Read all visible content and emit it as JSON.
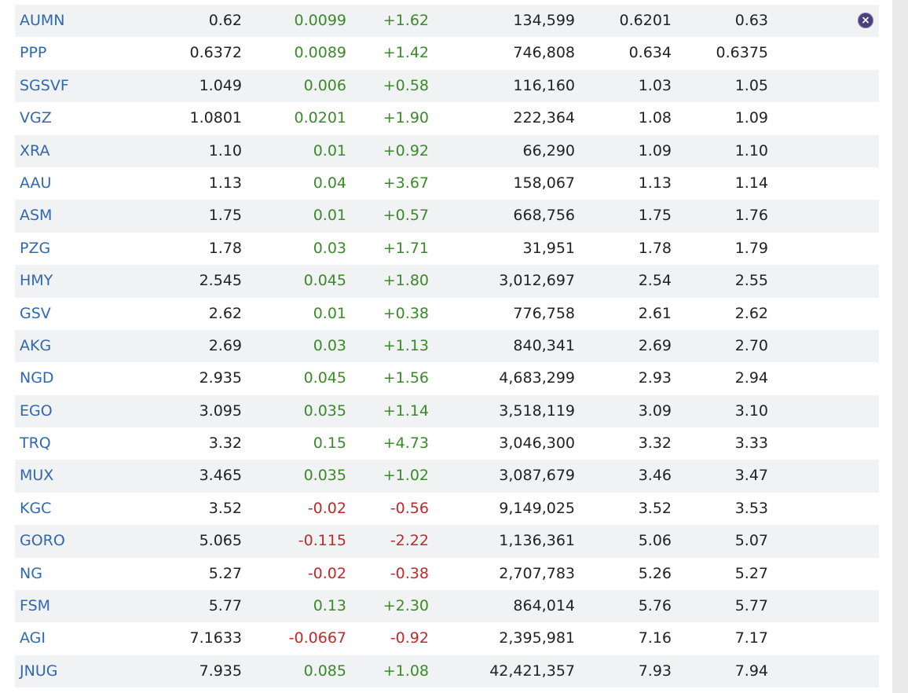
{
  "colors": {
    "symbol": "#2f68b0",
    "positive": "#3a8a2a",
    "negative": "#c0282d",
    "stripe": "#f1f2f3"
  },
  "close_icon": "close-icon",
  "rows": [
    {
      "symbol": "AUMN",
      "last": "0.62",
      "change": "0.0099",
      "pct": "+1.62",
      "volume": "134,599",
      "bid": "0.6201",
      "ask": "0.63",
      "dir": "pos"
    },
    {
      "symbol": "PPP",
      "last": "0.6372",
      "change": "0.0089",
      "pct": "+1.42",
      "volume": "746,808",
      "bid": "0.634",
      "ask": "0.6375",
      "dir": "pos"
    },
    {
      "symbol": "SGSVF",
      "last": "1.049",
      "change": "0.006",
      "pct": "+0.58",
      "volume": "116,160",
      "bid": "1.03",
      "ask": "1.05",
      "dir": "pos"
    },
    {
      "symbol": "VGZ",
      "last": "1.0801",
      "change": "0.0201",
      "pct": "+1.90",
      "volume": "222,364",
      "bid": "1.08",
      "ask": "1.09",
      "dir": "pos"
    },
    {
      "symbol": "XRA",
      "last": "1.10",
      "change": "0.01",
      "pct": "+0.92",
      "volume": "66,290",
      "bid": "1.09",
      "ask": "1.10",
      "dir": "pos"
    },
    {
      "symbol": "AAU",
      "last": "1.13",
      "change": "0.04",
      "pct": "+3.67",
      "volume": "158,067",
      "bid": "1.13",
      "ask": "1.14",
      "dir": "pos"
    },
    {
      "symbol": "ASM",
      "last": "1.75",
      "change": "0.01",
      "pct": "+0.57",
      "volume": "668,756",
      "bid": "1.75",
      "ask": "1.76",
      "dir": "pos"
    },
    {
      "symbol": "PZG",
      "last": "1.78",
      "change": "0.03",
      "pct": "+1.71",
      "volume": "31,951",
      "bid": "1.78",
      "ask": "1.79",
      "dir": "pos"
    },
    {
      "symbol": "HMY",
      "last": "2.545",
      "change": "0.045",
      "pct": "+1.80",
      "volume": "3,012,697",
      "bid": "2.54",
      "ask": "2.55",
      "dir": "pos"
    },
    {
      "symbol": "GSV",
      "last": "2.62",
      "change": "0.01",
      "pct": "+0.38",
      "volume": "776,758",
      "bid": "2.61",
      "ask": "2.62",
      "dir": "pos"
    },
    {
      "symbol": "AKG",
      "last": "2.69",
      "change": "0.03",
      "pct": "+1.13",
      "volume": "840,341",
      "bid": "2.69",
      "ask": "2.70",
      "dir": "pos"
    },
    {
      "symbol": "NGD",
      "last": "2.935",
      "change": "0.045",
      "pct": "+1.56",
      "volume": "4,683,299",
      "bid": "2.93",
      "ask": "2.94",
      "dir": "pos"
    },
    {
      "symbol": "EGO",
      "last": "3.095",
      "change": "0.035",
      "pct": "+1.14",
      "volume": "3,518,119",
      "bid": "3.09",
      "ask": "3.10",
      "dir": "pos"
    },
    {
      "symbol": "TRQ",
      "last": "3.32",
      "change": "0.15",
      "pct": "+4.73",
      "volume": "3,046,300",
      "bid": "3.32",
      "ask": "3.33",
      "dir": "pos"
    },
    {
      "symbol": "MUX",
      "last": "3.465",
      "change": "0.035",
      "pct": "+1.02",
      "volume": "3,087,679",
      "bid": "3.46",
      "ask": "3.47",
      "dir": "pos"
    },
    {
      "symbol": "KGC",
      "last": "3.52",
      "change": "-0.02",
      "pct": "-0.56",
      "volume": "9,149,025",
      "bid": "3.52",
      "ask": "3.53",
      "dir": "neg"
    },
    {
      "symbol": "GORO",
      "last": "5.065",
      "change": "-0.115",
      "pct": "-2.22",
      "volume": "1,136,361",
      "bid": "5.06",
      "ask": "5.07",
      "dir": "neg"
    },
    {
      "symbol": "NG",
      "last": "5.27",
      "change": "-0.02",
      "pct": "-0.38",
      "volume": "2,707,783",
      "bid": "5.26",
      "ask": "5.27",
      "dir": "neg"
    },
    {
      "symbol": "FSM",
      "last": "5.77",
      "change": "0.13",
      "pct": "+2.30",
      "volume": "864,014",
      "bid": "5.76",
      "ask": "5.77",
      "dir": "pos"
    },
    {
      "symbol": "AGI",
      "last": "7.1633",
      "change": "-0.0667",
      "pct": "-0.92",
      "volume": "2,395,981",
      "bid": "7.16",
      "ask": "7.17",
      "dir": "neg"
    },
    {
      "symbol": "JNUG",
      "last": "7.935",
      "change": "0.085",
      "pct": "+1.08",
      "volume": "42,421,357",
      "bid": "7.93",
      "ask": "7.94",
      "dir": "pos"
    }
  ]
}
